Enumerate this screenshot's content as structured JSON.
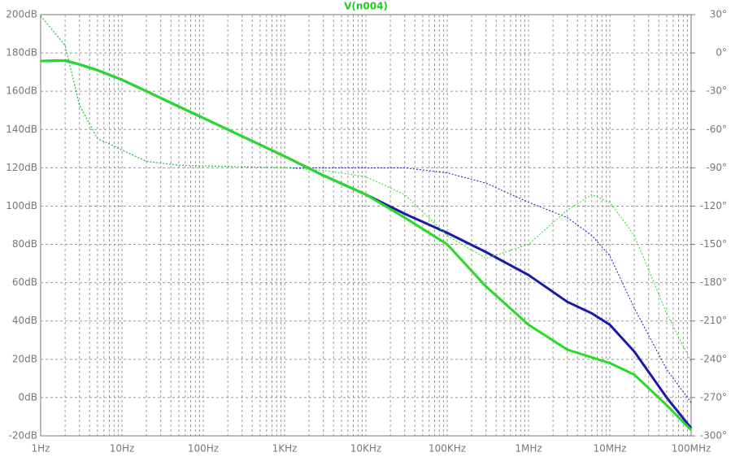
{
  "chart_data": {
    "type": "line",
    "title": "V(n004)",
    "title_color": "#22cc22",
    "x": [
      1,
      2,
      3,
      5,
      10,
      20,
      50,
      100,
      1000,
      3000,
      10000,
      30000,
      100000,
      300000,
      1000000,
      3000000,
      6000000,
      10000000,
      20000000,
      50000000,
      100000000
    ],
    "xscale": "log",
    "xlim": [
      1,
      100000000
    ],
    "xticks": [
      {
        "value": 1,
        "label": "1Hz"
      },
      {
        "value": 10,
        "label": "10Hz"
      },
      {
        "value": 100,
        "label": "100Hz"
      },
      {
        "value": 1000,
        "label": "1KHz"
      },
      {
        "value": 10000,
        "label": "10KHz"
      },
      {
        "value": 100000,
        "label": "100KHz"
      },
      {
        "value": 1000000,
        "label": "1MHz"
      },
      {
        "value": 10000000,
        "label": "10MHz"
      },
      {
        "value": 100000000,
        "label": "100MHz"
      }
    ],
    "ylim": [
      -20,
      200
    ],
    "yticks": [
      {
        "value": 200,
        "label": "200dB"
      },
      {
        "value": 180,
        "label": "180dB"
      },
      {
        "value": 160,
        "label": "160dB"
      },
      {
        "value": 140,
        "label": "140dB"
      },
      {
        "value": 120,
        "label": "120dB"
      },
      {
        "value": 100,
        "label": "100dB"
      },
      {
        "value": 80,
        "label": "80dB"
      },
      {
        "value": 60,
        "label": "60dB"
      },
      {
        "value": 40,
        "label": "40dB"
      },
      {
        "value": 20,
        "label": "20dB"
      },
      {
        "value": 0,
        "label": "0dB"
      },
      {
        "value": -20,
        "label": "-20dB"
      }
    ],
    "y2lim": [
      -300,
      30
    ],
    "y2ticks": [
      {
        "value": 30,
        "label": "30°"
      },
      {
        "value": 0,
        "label": "0°"
      },
      {
        "value": -30,
        "label": "-30°"
      },
      {
        "value": -60,
        "label": "-60°"
      },
      {
        "value": -90,
        "label": "-90°"
      },
      {
        "value": -120,
        "label": "-120°"
      },
      {
        "value": -150,
        "label": "-150°"
      },
      {
        "value": -180,
        "label": "-180°"
      },
      {
        "value": -210,
        "label": "-210°"
      },
      {
        "value": -240,
        "label": "-240°"
      },
      {
        "value": -270,
        "label": "-270°"
      },
      {
        "value": -300,
        "label": "-300°"
      }
    ],
    "grid": true,
    "series": [
      {
        "color": "#1a1aaa",
        "style": "solid",
        "values": [
          175.8,
          176,
          174,
          171,
          166,
          160,
          152,
          146,
          126,
          116,
          106,
          96,
          86,
          76,
          64,
          50,
          44,
          38,
          24,
          0,
          -16
        ]
      },
      {
        "color": "#1a1aaa",
        "style": "dotted",
        "axis": "y2",
        "values": [
          29,
          6,
          -41,
          -67,
          -76,
          -85,
          -88,
          -88.5,
          -90,
          -90,
          -90,
          -90,
          -94,
          -102,
          -117,
          -129,
          -143,
          -159,
          -200,
          -248,
          -274
        ]
      },
      {
        "color": "#22dd22",
        "style": "solid",
        "values": [
          175.8,
          176,
          174,
          171,
          166,
          160,
          152,
          146,
          126,
          116,
          106,
          94,
          80,
          58,
          38,
          25,
          21,
          18,
          12,
          -4,
          -17
        ]
      },
      {
        "color": "#22dd22",
        "style": "dotted",
        "axis": "y2",
        "values": [
          29,
          6,
          -41,
          -67,
          -76,
          -85,
          -88,
          -88.5,
          -90,
          -92,
          -97,
          -111,
          -143,
          -161,
          -150,
          -123,
          -111,
          -117,
          -143,
          -204,
          -242
        ]
      }
    ]
  }
}
